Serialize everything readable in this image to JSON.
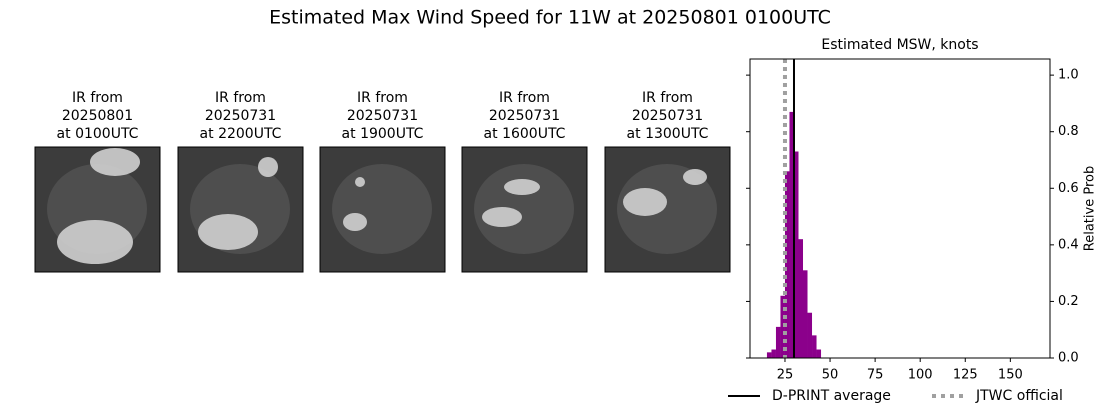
{
  "title": "Estimated Max Wind Speed for 11W at 20250801 0100UTC",
  "images": [
    {
      "lines": [
        "IR from",
        "20250801",
        "at 0100UTC"
      ]
    },
    {
      "lines": [
        "IR from",
        "20250731",
        "at 2200UTC"
      ]
    },
    {
      "lines": [
        "IR from",
        "20250731",
        "at 1900UTC"
      ]
    },
    {
      "lines": [
        "IR from",
        "20250731",
        "at 1600UTC"
      ]
    },
    {
      "lines": [
        "IR from",
        "20250731",
        "at 1300UTC"
      ]
    }
  ],
  "chart_data": {
    "type": "histogram",
    "title": "Estimated MSW, knots",
    "y_label": "Relative Prob",
    "bins": [
      15,
      17.5,
      20,
      22.5,
      25,
      27.5,
      30,
      32.5,
      35,
      37.5,
      40,
      42.5,
      45
    ],
    "values": [
      0.02,
      0.03,
      0.11,
      0.22,
      0.66,
      0.87,
      0.73,
      0.42,
      0.31,
      0.16,
      0.08,
      0.03
    ],
    "color": "#8b008b",
    "xlim": [
      5.6,
      172
    ],
    "xticks": [
      25,
      50,
      75,
      100,
      125,
      150
    ],
    "ylim": [
      0,
      1.057
    ],
    "yticks": [
      {
        "value": 0,
        "label": "0.0"
      },
      {
        "value": 0.2,
        "label": "0.2"
      },
      {
        "value": 0.4,
        "label": "0.4"
      },
      {
        "value": 0.6,
        "label": "0.6"
      },
      {
        "value": 0.8,
        "label": "0.8"
      },
      {
        "value": 1.0,
        "label": "1.0"
      }
    ],
    "lines": [
      {
        "name": "D-PRINT average",
        "color": "#000000",
        "value": 30,
        "style": "solid"
      },
      {
        "name": "JTWC official",
        "color": "#a0a0a0",
        "value": 25,
        "style": "dotted"
      }
    ]
  }
}
